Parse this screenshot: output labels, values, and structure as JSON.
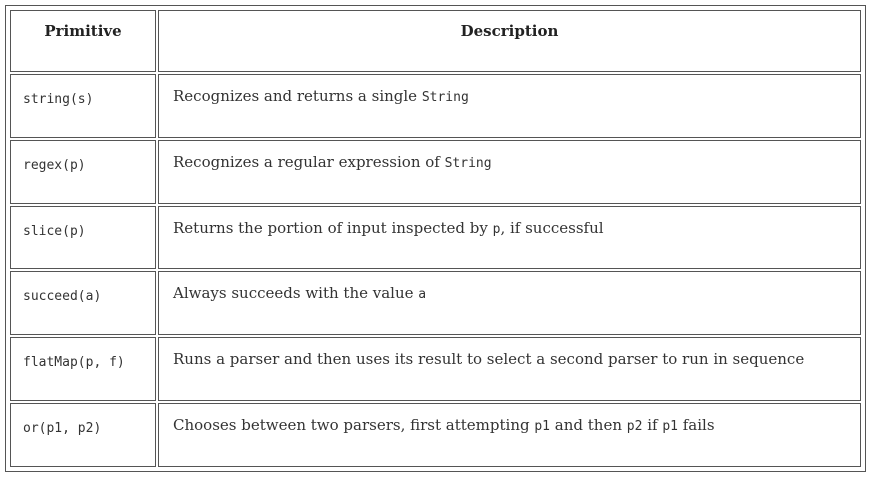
{
  "table": {
    "headers": [
      "Primitive",
      "Description"
    ],
    "rows": [
      {
        "primitive": "string(s)",
        "desc": [
          {
            "t": "Recognizes and returns a single "
          },
          {
            "c": "String"
          }
        ]
      },
      {
        "primitive": "regex(p)",
        "desc": [
          {
            "t": "Recognizes a regular expression of "
          },
          {
            "c": "String"
          }
        ]
      },
      {
        "primitive": "slice(p)",
        "desc": [
          {
            "t": "Returns the portion of input inspected by "
          },
          {
            "c": "p"
          },
          {
            "t": ", if successful"
          }
        ]
      },
      {
        "primitive": "succeed(a)",
        "desc": [
          {
            "t": "Always succeeds with the value "
          },
          {
            "c": "a"
          }
        ]
      },
      {
        "primitive": "flatMap(p, f)",
        "desc": [
          {
            "t": "Runs a parser and then uses its result to select a second parser to run in sequence"
          }
        ]
      },
      {
        "primitive": "or(p1, p2)",
        "desc": [
          {
            "t": "Chooses between two parsers, first attempting "
          },
          {
            "c": "p1"
          },
          {
            "t": " and then "
          },
          {
            "c": "p2"
          },
          {
            "t": " if "
          },
          {
            "c": "p1"
          },
          {
            "t": " fails"
          }
        ]
      }
    ]
  }
}
